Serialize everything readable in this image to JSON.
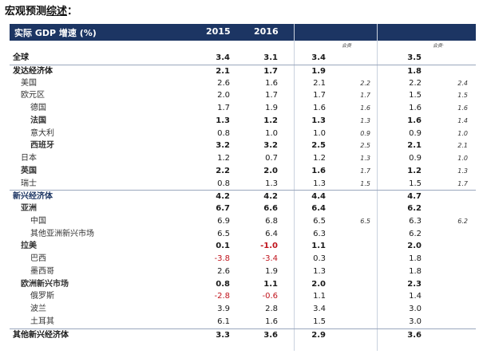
{
  "title_prefix": "宏观预测",
  "title_underlined": "综述",
  "title_suffix": "：",
  "header": {
    "label": "实际 GDP 增速 (%)",
    "col_2015": "2015",
    "col_2016": "2016"
  },
  "notes": {
    "note_2017": "会费",
    "note_2018": "会费·"
  },
  "rows": [
    {
      "label": "全球",
      "v2015": "3.4",
      "v2016": "3.1",
      "v2017": "3.4",
      "n2017": "",
      "v2018": "3.5",
      "n2018": ""
    },
    {
      "label": "发达经济体",
      "v2015": "2.1",
      "v2016": "1.7",
      "v2017": "1.9",
      "n2017": "",
      "v2018": "1.8",
      "n2018": ""
    },
    {
      "label": "美国",
      "v2015": "2.6",
      "v2016": "1.6",
      "v2017": "2.1",
      "n2017": "2.2",
      "v2018": "2.2",
      "n2018": "2.4"
    },
    {
      "label": "欧元区",
      "v2015": "2.0",
      "v2016": "1.7",
      "v2017": "1.7",
      "n2017": "1.7",
      "v2018": "1.5",
      "n2018": "1.5"
    },
    {
      "label": "德国",
      "v2015": "1.7",
      "v2016": "1.9",
      "v2017": "1.6",
      "n2017": "1.6",
      "v2018": "1.6",
      "n2018": "1.6"
    },
    {
      "label": "法国",
      "v2015": "1.3",
      "v2016": "1.2",
      "v2017": "1.3",
      "n2017": "1.3",
      "v2018": "1.6",
      "n2018": "1.4"
    },
    {
      "label": "意大利",
      "v2015": "0.8",
      "v2016": "1.0",
      "v2017": "1.0",
      "n2017": "0.9",
      "v2018": "0.9",
      "n2018": "1.0"
    },
    {
      "label": "西班牙",
      "v2015": "3.2",
      "v2016": "3.2",
      "v2017": "2.5",
      "n2017": "2.5",
      "v2018": "2.1",
      "n2018": "2.1"
    },
    {
      "label": "日本",
      "v2015": "1.2",
      "v2016": "0.7",
      "v2017": "1.2",
      "n2017": "1.3",
      "v2018": "0.9",
      "n2018": "1.0"
    },
    {
      "label": "英国",
      "v2015": "2.2",
      "v2016": "2.0",
      "v2017": "1.6",
      "n2017": "1.7",
      "v2018": "1.2",
      "n2018": "1.3"
    },
    {
      "label": "瑞士",
      "v2015": "0.8",
      "v2016": "1.3",
      "v2017": "1.3",
      "n2017": "1.5",
      "v2018": "1.5",
      "n2018": "1.7"
    },
    {
      "label": "新兴经济体",
      "v2015": "4.2",
      "v2016": "4.2",
      "v2017": "4.4",
      "n2017": "",
      "v2018": "4.7",
      "n2018": ""
    },
    {
      "label": "亚洲",
      "v2015": "6.7",
      "v2016": "6.6",
      "v2017": "6.4",
      "n2017": "",
      "v2018": "6.2",
      "n2018": ""
    },
    {
      "label": "中国",
      "v2015": "6.9",
      "v2016": "6.8",
      "v2017": "6.5",
      "n2017": "6.5",
      "v2018": "6.3",
      "n2018": "6.2"
    },
    {
      "label": "其他亚洲新兴市场",
      "v2015": "6.5",
      "v2016": "6.4",
      "v2017": "6.3",
      "n2017": "",
      "v2018": "6.2",
      "n2018": ""
    },
    {
      "label": "拉美",
      "v2015": "0.1",
      "v2016": "-1.0",
      "v2017": "1.1",
      "n2017": "",
      "v2018": "2.0",
      "n2018": ""
    },
    {
      "label": "巴西",
      "v2015": "-3.8",
      "v2016": "-3.4",
      "v2017": "0.3",
      "n2017": "",
      "v2018": "1.8",
      "n2018": ""
    },
    {
      "label": "墨西哥",
      "v2015": "2.6",
      "v2016": "1.9",
      "v2017": "1.3",
      "n2017": "",
      "v2018": "1.8",
      "n2018": ""
    },
    {
      "label": "欧洲新兴市场",
      "v2015": "0.8",
      "v2016": "1.1",
      "v2017": "2.0",
      "n2017": "",
      "v2018": "2.3",
      "n2018": ""
    },
    {
      "label": "俄罗斯",
      "v2015": "-2.8",
      "v2016": "-0.6",
      "v2017": "1.1",
      "n2017": "",
      "v2018": "1.4",
      "n2018": ""
    },
    {
      "label": "波兰",
      "v2015": "3.9",
      "v2016": "2.8",
      "v2017": "3.4",
      "n2017": "",
      "v2018": "3.0",
      "n2018": ""
    },
    {
      "label": "土耳其",
      "v2015": "6.1",
      "v2016": "1.6",
      "v2017": "1.5",
      "n2017": "",
      "v2018": "3.0",
      "n2018": ""
    },
    {
      "label": "其他新兴经济体",
      "v2015": "3.3",
      "v2016": "3.6",
      "v2017": "2.9",
      "n2017": "",
      "v2018": "3.6",
      "n2018": ""
    }
  ],
  "colors": {
    "header_bg": "#1c3563",
    "negative": "#c0141c",
    "section_label": "#1c3563"
  }
}
